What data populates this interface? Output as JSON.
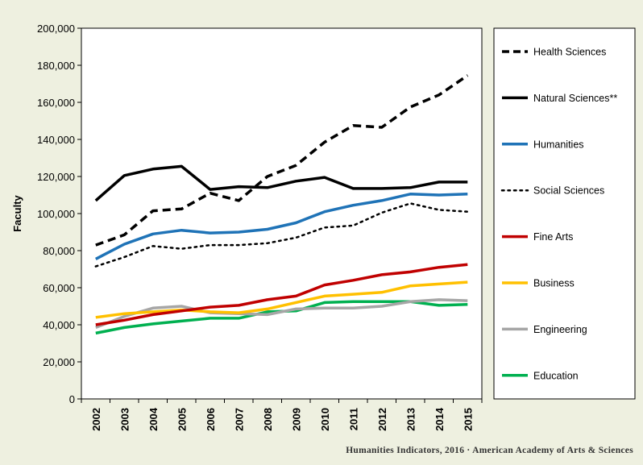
{
  "chart_data": {
    "type": "line",
    "title": "",
    "xlabel": "",
    "ylabel": "Faculty",
    "ylim": [
      0,
      200000
    ],
    "yticks": [
      0,
      20000,
      40000,
      60000,
      80000,
      100000,
      120000,
      140000,
      160000,
      180000,
      200000
    ],
    "ytick_labels": [
      "0",
      "20,000",
      "40,000",
      "60,000",
      "80,000",
      "100,000",
      "120,000",
      "140,000",
      "160,000",
      "180,000",
      "200,000"
    ],
    "categories": [
      "2002",
      "2003",
      "2004",
      "2005",
      "2006",
      "2007",
      "2008",
      "2009",
      "2010",
      "2011",
      "2012",
      "2013",
      "2014",
      "2015"
    ],
    "grid": false,
    "legend_position": "right",
    "series": [
      {
        "name": "Health Sciences",
        "color": "#000000",
        "dash": "dashed",
        "values": [
          83000,
          88500,
          101500,
          102500,
          111000,
          107000,
          120000,
          126000,
          138500,
          147500,
          146500,
          157500,
          164000,
          174500
        ]
      },
      {
        "name": "Natural Sciences**",
        "color": "#000000",
        "dash": "solid",
        "values": [
          107000,
          120500,
          124000,
          125500,
          113000,
          114500,
          114000,
          117500,
          119500,
          113500,
          113500,
          114000,
          117000,
          117000
        ]
      },
      {
        "name": "Humanities",
        "color": "#1f73b7",
        "dash": "solid",
        "values": [
          75500,
          83500,
          89000,
          91000,
          89500,
          90000,
          91500,
          95000,
          101000,
          104500,
          107000,
          110500,
          110000,
          110500
        ]
      },
      {
        "name": "Social Sciences",
        "color": "#000000",
        "dash": "dotted",
        "values": [
          71500,
          76500,
          82500,
          81000,
          83000,
          83000,
          84000,
          87000,
          92500,
          93500,
          100500,
          105500,
          102000,
          101000
        ]
      },
      {
        "name": "Fine Arts",
        "color": "#c00000",
        "dash": "solid",
        "values": [
          40000,
          42500,
          45500,
          47500,
          49500,
          50500,
          53500,
          55500,
          61500,
          64000,
          67000,
          68500,
          71000,
          72500
        ]
      },
      {
        "name": "Business",
        "color": "#ffc000",
        "dash": "solid",
        "values": [
          44000,
          46000,
          47000,
          48000,
          47000,
          46500,
          48500,
          52000,
          55500,
          56500,
          57500,
          61000,
          62000,
          63000
        ]
      },
      {
        "name": "Engineering",
        "color": "#a6a6a6",
        "dash": "solid",
        "values": [
          38500,
          44500,
          49000,
          50000,
          46500,
          46000,
          45500,
          48500,
          49000,
          49000,
          50000,
          52500,
          53500,
          53000
        ]
      },
      {
        "name": "Education",
        "color": "#00b050",
        "dash": "solid",
        "values": [
          35500,
          38500,
          40500,
          42000,
          43500,
          43500,
          47000,
          47500,
          52000,
          52500,
          52500,
          52500,
          50500,
          51000
        ]
      }
    ]
  },
  "credit": "Humanities  Indicators, 2016 · American Academy of Arts & Sciences"
}
